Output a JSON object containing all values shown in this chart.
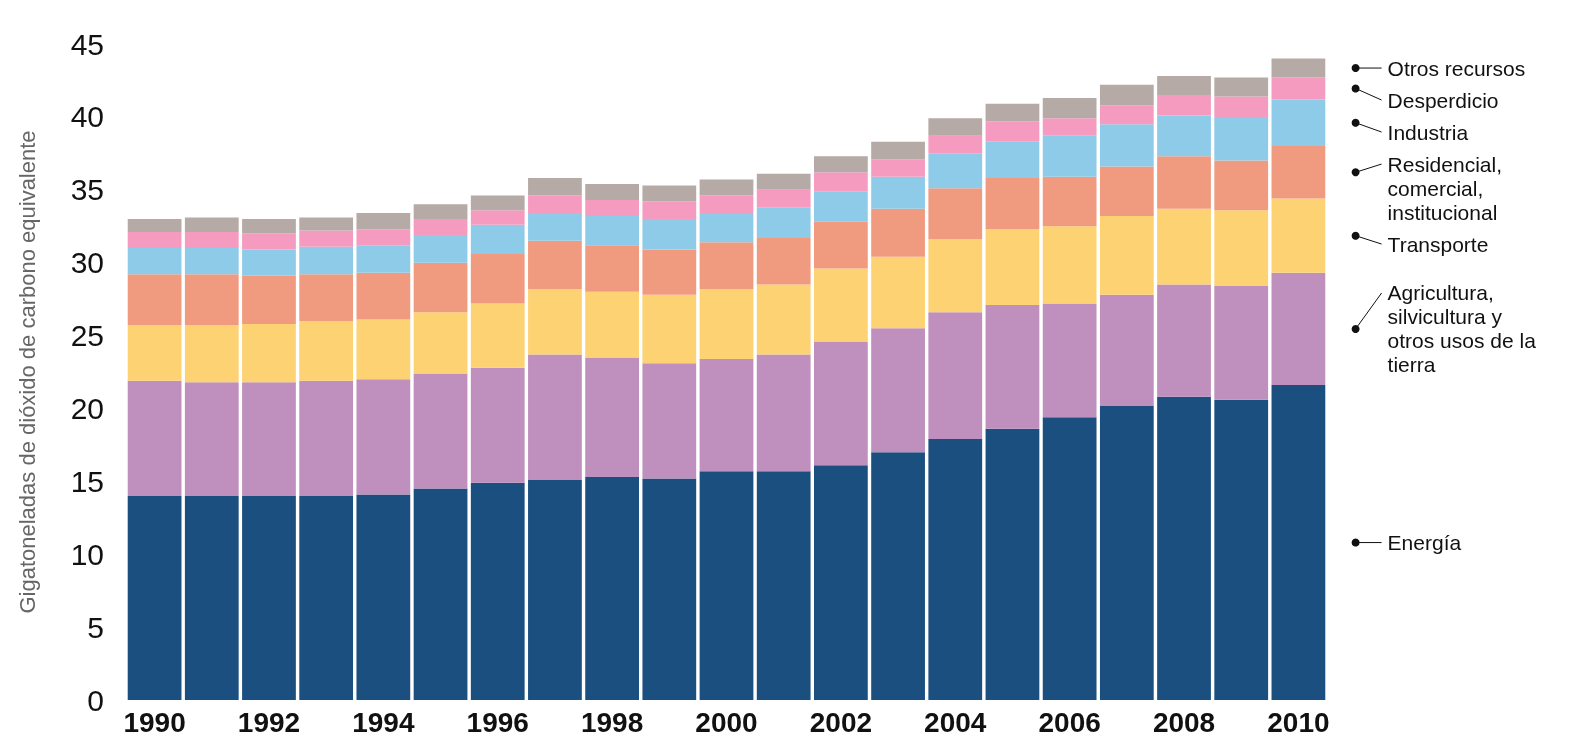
{
  "chart_data": {
    "type": "bar",
    "stacked": true,
    "ylabel": "Gigatoneladas de dióxido de carbono equivalente",
    "categories": [
      "1990",
      null,
      "1992",
      null,
      "1994",
      null,
      "1996",
      null,
      "1998",
      null,
      "2000",
      null,
      "2002",
      null,
      "2004",
      null,
      "2006",
      null,
      "2008",
      null,
      "2010"
    ],
    "ylim": [
      0,
      45
    ],
    "yticks": [
      0,
      5,
      10,
      15,
      20,
      25,
      30,
      35,
      40,
      45
    ],
    "grid": false,
    "legend": false,
    "series": [
      {
        "name": "Energía",
        "color": "#1b4f80",
        "values": [
          14.0,
          14.0,
          14.0,
          14.0,
          14.1,
          14.5,
          14.9,
          15.1,
          15.3,
          15.2,
          15.7,
          15.7,
          16.1,
          17.0,
          17.9,
          18.6,
          19.4,
          20.2,
          20.8,
          20.6,
          21.6
        ]
      },
      {
        "name": "Agricultura, silvicultura y otros usos de la tierra",
        "color": "#bf8fbd",
        "values": [
          7.9,
          7.8,
          7.8,
          7.9,
          7.9,
          7.9,
          7.9,
          8.6,
          8.2,
          7.9,
          7.7,
          8.0,
          8.5,
          8.5,
          8.7,
          8.5,
          7.8,
          7.6,
          7.7,
          7.8,
          7.7
        ]
      },
      {
        "name": "Transporte",
        "color": "#fdd273",
        "values": [
          3.8,
          3.9,
          4.0,
          4.1,
          4.1,
          4.2,
          4.4,
          4.5,
          4.5,
          4.7,
          4.8,
          4.8,
          5.0,
          4.9,
          5.0,
          5.2,
          5.3,
          5.4,
          5.2,
          5.2,
          5.1
        ]
      },
      {
        "name": "Residencial, comercial, institucional",
        "color": "#f09b80",
        "values": [
          3.5,
          3.5,
          3.3,
          3.2,
          3.2,
          3.4,
          3.4,
          3.3,
          3.2,
          3.1,
          3.2,
          3.2,
          3.2,
          3.3,
          3.5,
          3.5,
          3.4,
          3.4,
          3.6,
          3.4,
          3.6
        ]
      },
      {
        "name": "Industria",
        "color": "#8ecbe8",
        "values": [
          1.8,
          1.8,
          1.8,
          1.9,
          1.9,
          1.9,
          2.0,
          1.9,
          2.0,
          2.1,
          2.0,
          2.1,
          2.1,
          2.2,
          2.4,
          2.5,
          2.8,
          2.9,
          2.8,
          3.0,
          3.2
        ]
      },
      {
        "name": "Desperdicio",
        "color": "#f59bbf",
        "values": [
          1.1,
          1.1,
          1.1,
          1.1,
          1.1,
          1.1,
          1.0,
          1.2,
          1.1,
          1.2,
          1.2,
          1.2,
          1.3,
          1.2,
          1.2,
          1.4,
          1.2,
          1.3,
          1.4,
          1.4,
          1.5
        ]
      },
      {
        "name": "Otros recursos",
        "color": "#b5aaa6",
        "values": [
          0.9,
          1.0,
          1.0,
          0.9,
          1.1,
          1.0,
          1.0,
          1.2,
          1.1,
          1.1,
          1.1,
          1.1,
          1.1,
          1.2,
          1.2,
          1.2,
          1.4,
          1.4,
          1.3,
          1.3,
          1.3
        ]
      }
    ]
  }
}
